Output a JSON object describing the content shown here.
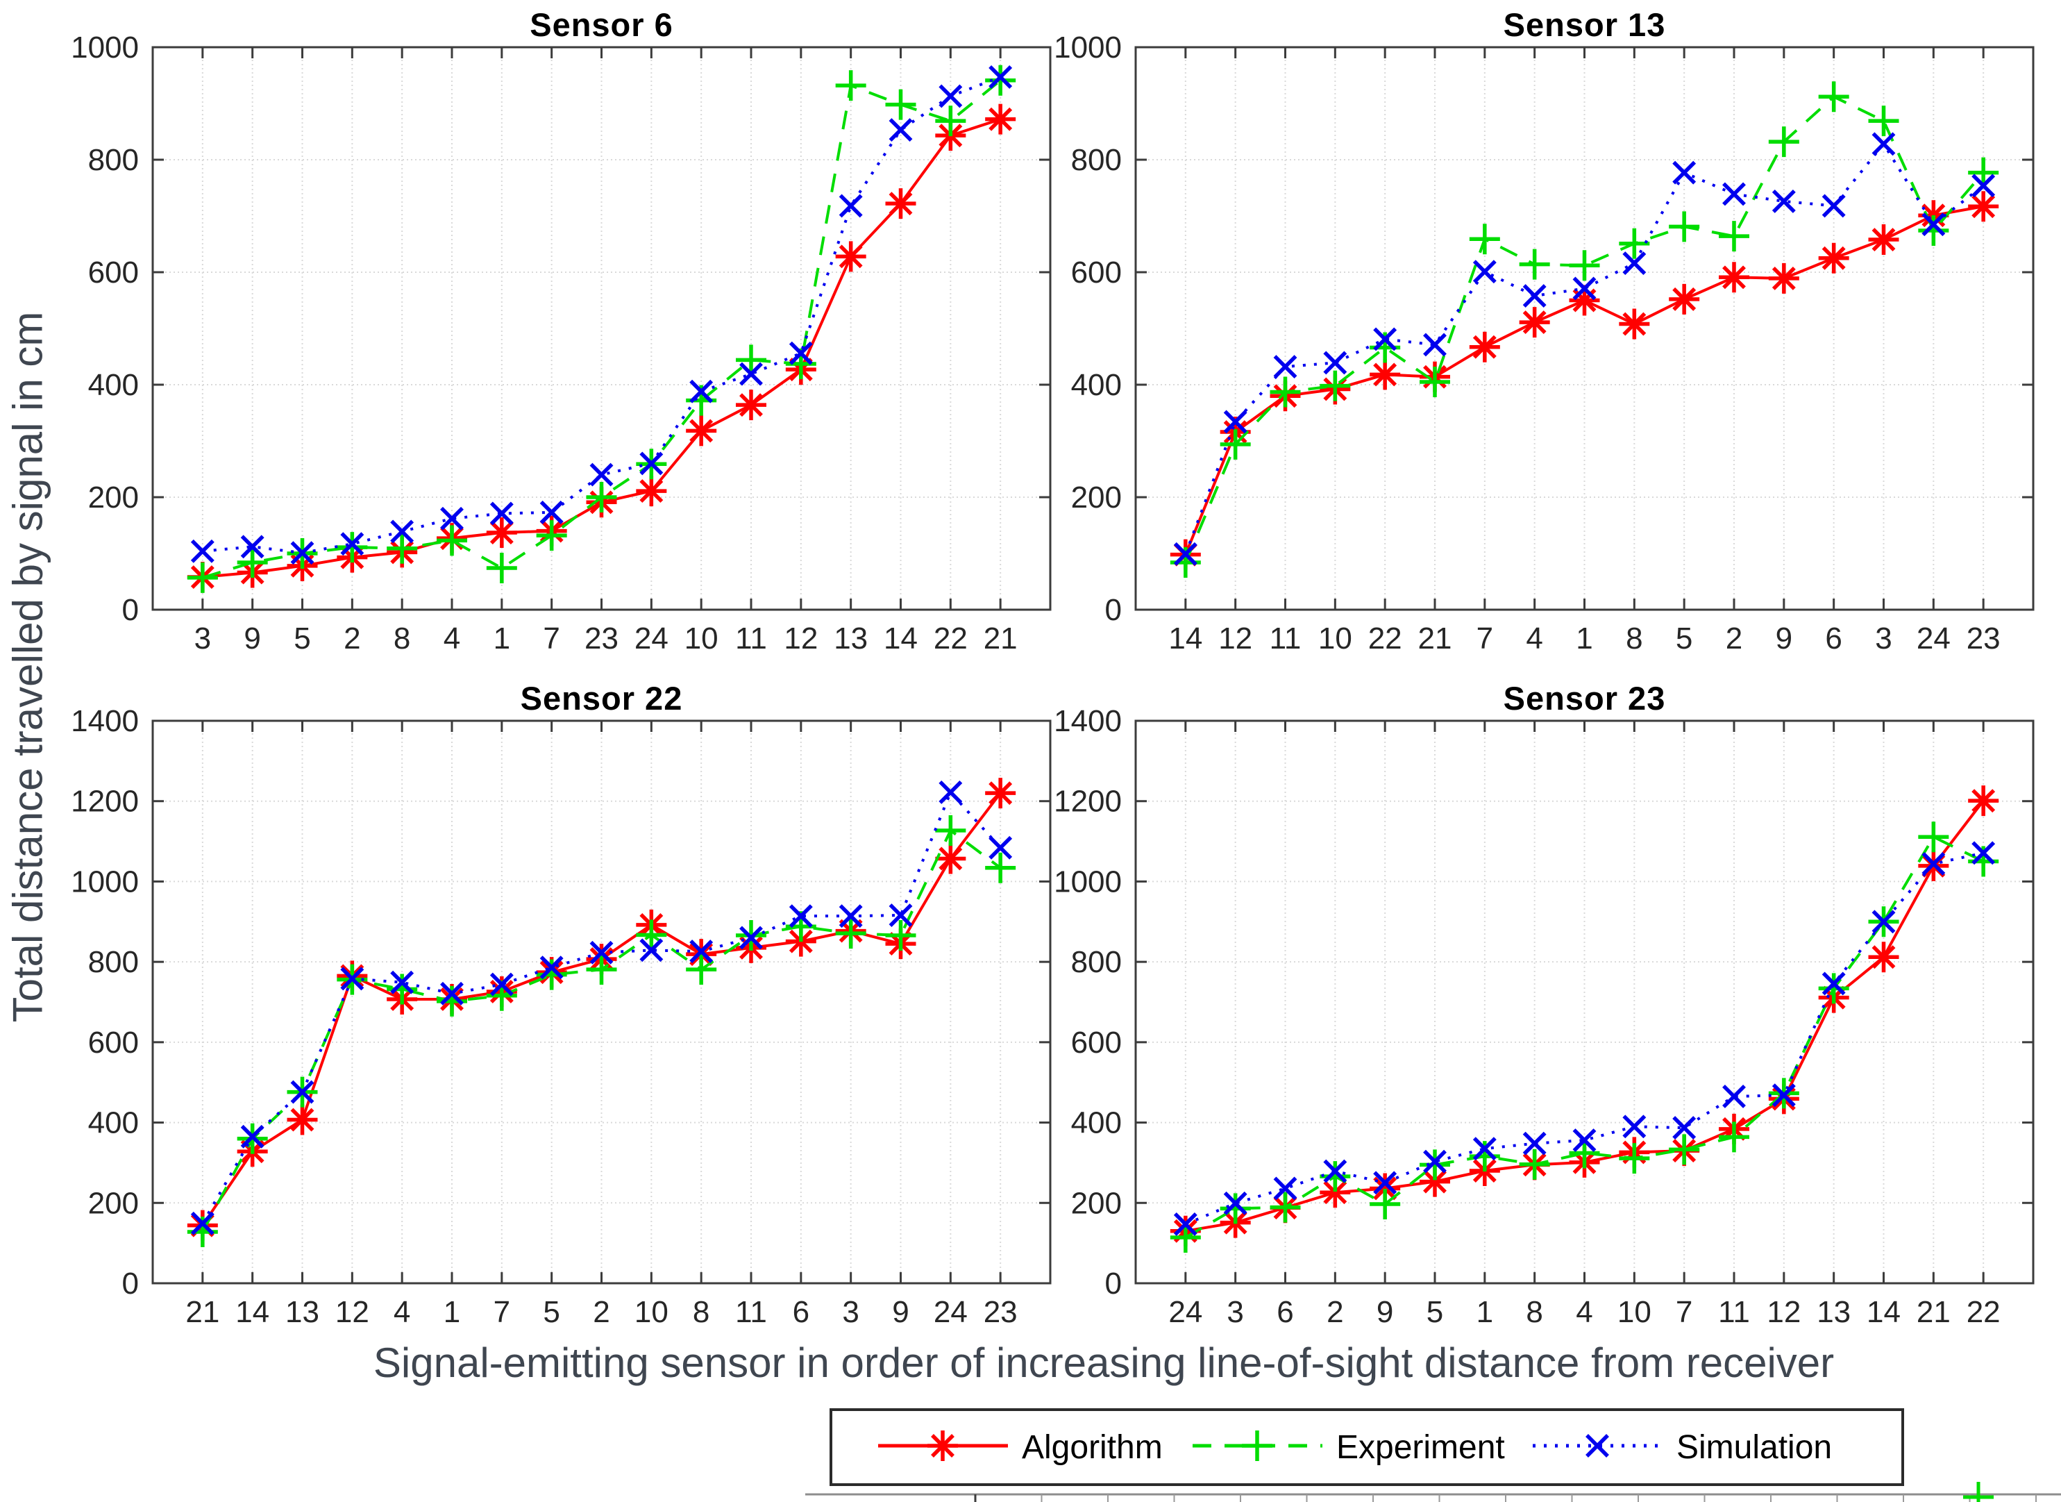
{
  "figure": {
    "ylabel": "Total distance travelled by signal in cm",
    "xlabel": "Signal-emitting sensor in order of increasing line-of-sight distance from receiver",
    "background": "#ffffff",
    "grid_color": "#d9d9d9",
    "axis_color": "#3c3c3c",
    "tick_label_color": "#262626",
    "big_label_color": "#3f4650"
  },
  "legend": {
    "position": "bottom-center",
    "items": [
      {
        "label": "Algorithm",
        "color": "#ff0000",
        "line": "solid",
        "marker": "asterisk"
      },
      {
        "label": "Experiment",
        "color": "#00dd00",
        "line": "dashed",
        "marker": "plus"
      },
      {
        "label": "Simulation",
        "color": "#0000ee",
        "line": "dotted",
        "marker": "x"
      }
    ]
  },
  "chart_data": [
    {
      "type": "line",
      "title": "Sensor 6",
      "categories": [
        "3",
        "9",
        "5",
        "2",
        "8",
        "4",
        "1",
        "7",
        "23",
        "24",
        "10",
        "11",
        "12",
        "13",
        "14",
        "22",
        "21"
      ],
      "ylim": [
        0,
        1000
      ],
      "yticks": [
        0,
        200,
        400,
        600,
        800,
        1000
      ],
      "grid": true,
      "series": [
        {
          "name": "Algorithm",
          "values": [
            58,
            66,
            78,
            93,
            102,
            127,
            137,
            140,
            191,
            211,
            318,
            364,
            427,
            628,
            722,
            843,
            872
          ]
        },
        {
          "name": "Experiment",
          "values": [
            57,
            84,
            100,
            111,
            109,
            123,
            74,
            132,
            200,
            259,
            372,
            444,
            437,
            932,
            898,
            869,
            941
          ]
        },
        {
          "name": "Simulation",
          "values": [
            104,
            112,
            101,
            117,
            139,
            162,
            171,
            173,
            240,
            260,
            388,
            419,
            456,
            718,
            853,
            913,
            947
          ]
        }
      ]
    },
    {
      "type": "line",
      "title": "Sensor 13",
      "categories": [
        "14",
        "12",
        "11",
        "10",
        "22",
        "21",
        "7",
        "4",
        "1",
        "8",
        "5",
        "2",
        "9",
        "6",
        "3",
        "24",
        "23"
      ],
      "ylim": [
        0,
        1000
      ],
      "yticks": [
        0,
        200,
        400,
        600,
        800,
        1000
      ],
      "grid": true,
      "series": [
        {
          "name": "Algorithm",
          "values": [
            98,
            316,
            380,
            392,
            418,
            414,
            467,
            511,
            550,
            508,
            552,
            591,
            589,
            625,
            658,
            701,
            717
          ]
        },
        {
          "name": "Experiment",
          "values": [
            84,
            294,
            387,
            398,
            466,
            405,
            659,
            614,
            612,
            651,
            681,
            664,
            832,
            912,
            869,
            674,
            777
          ]
        },
        {
          "name": "Simulation",
          "values": [
            99,
            334,
            432,
            439,
            481,
            471,
            601,
            558,
            571,
            616,
            777,
            739,
            726,
            718,
            828,
            685,
            754
          ]
        }
      ]
    },
    {
      "type": "line",
      "title": "Sensor 22",
      "categories": [
        "21",
        "14",
        "13",
        "12",
        "4",
        "1",
        "7",
        "5",
        "2",
        "10",
        "8",
        "11",
        "6",
        "3",
        "9",
        "24",
        "23"
      ],
      "ylim": [
        0,
        1400
      ],
      "yticks": [
        0,
        200,
        400,
        600,
        800,
        1000,
        1200,
        1400
      ],
      "grid": true,
      "series": [
        {
          "name": "Algorithm",
          "values": [
            144,
            328,
            407,
            765,
            707,
            707,
            726,
            774,
            807,
            892,
            819,
            835,
            851,
            877,
            845,
            1057,
            1220
          ]
        },
        {
          "name": "Experiment",
          "values": [
            128,
            360,
            476,
            756,
            732,
            702,
            716,
            768,
            781,
            867,
            781,
            866,
            888,
            871,
            866,
            1127,
            1034
          ]
        },
        {
          "name": "Simulation",
          "values": [
            149,
            365,
            476,
            758,
            749,
            721,
            744,
            786,
            823,
            829,
            826,
            860,
            914,
            914,
            916,
            1222,
            1084
          ]
        }
      ]
    },
    {
      "type": "line",
      "title": "Sensor 23",
      "categories": [
        "24",
        "3",
        "6",
        "2",
        "9",
        "5",
        "1",
        "8",
        "4",
        "10",
        "7",
        "11",
        "12",
        "13",
        "14",
        "21",
        "22"
      ],
      "ylim": [
        0,
        1400
      ],
      "yticks": [
        0,
        200,
        400,
        600,
        800,
        1000,
        1200,
        1400
      ],
      "grid": true,
      "series": [
        {
          "name": "Algorithm",
          "values": [
            130,
            151,
            188,
            226,
            236,
            253,
            280,
            295,
            301,
            326,
            330,
            384,
            459,
            711,
            812,
            1039,
            1201
          ]
        },
        {
          "name": "Experiment",
          "values": [
            114,
            186,
            189,
            266,
            197,
            295,
            316,
            296,
            324,
            311,
            333,
            364,
            473,
            734,
            900,
            1111,
            1050
          ]
        },
        {
          "name": "Simulation",
          "values": [
            147,
            199,
            236,
            279,
            250,
            303,
            335,
            348,
            356,
            390,
            387,
            465,
            468,
            746,
            900,
            1044,
            1071
          ]
        }
      ]
    }
  ]
}
